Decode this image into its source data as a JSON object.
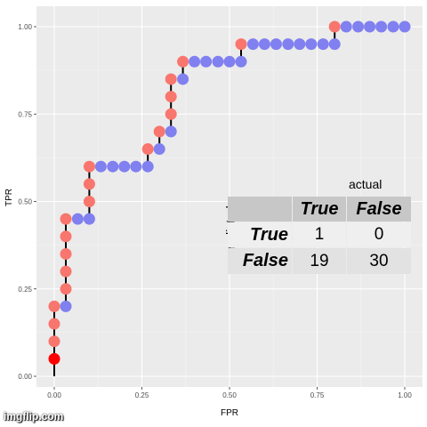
{
  "chart_data": {
    "type": "line",
    "xlabel": "FPR",
    "ylabel": "TPR",
    "xlim": [
      0,
      1
    ],
    "ylim": [
      0,
      1
    ],
    "xticks": [
      "0.00",
      "0.25",
      "0.50",
      "0.75",
      "1.00"
    ],
    "yticks": [
      "0.00",
      "0.25",
      "0.50",
      "0.75",
      "1.00"
    ],
    "grid": true,
    "background": "#ebebeb",
    "colors": {
      "true": "#f8766d",
      "false": "#8080f0",
      "current": "#ff0000",
      "line": "#000000"
    },
    "points": [
      {
        "x": 0.0,
        "y": 0.05,
        "actual": "current"
      },
      {
        "x": 0.0,
        "y": 0.1,
        "actual": "true"
      },
      {
        "x": 0.0,
        "y": 0.15,
        "actual": "true"
      },
      {
        "x": 0.0,
        "y": 0.2,
        "actual": "true"
      },
      {
        "x": 0.033,
        "y": 0.2,
        "actual": "false"
      },
      {
        "x": 0.033,
        "y": 0.25,
        "actual": "true"
      },
      {
        "x": 0.033,
        "y": 0.3,
        "actual": "true"
      },
      {
        "x": 0.033,
        "y": 0.35,
        "actual": "true"
      },
      {
        "x": 0.033,
        "y": 0.4,
        "actual": "true"
      },
      {
        "x": 0.033,
        "y": 0.45,
        "actual": "true"
      },
      {
        "x": 0.067,
        "y": 0.45,
        "actual": "false"
      },
      {
        "x": 0.1,
        "y": 0.45,
        "actual": "false"
      },
      {
        "x": 0.1,
        "y": 0.5,
        "actual": "true"
      },
      {
        "x": 0.1,
        "y": 0.55,
        "actual": "true"
      },
      {
        "x": 0.1,
        "y": 0.6,
        "actual": "true"
      },
      {
        "x": 0.133,
        "y": 0.6,
        "actual": "false"
      },
      {
        "x": 0.167,
        "y": 0.6,
        "actual": "false"
      },
      {
        "x": 0.2,
        "y": 0.6,
        "actual": "false"
      },
      {
        "x": 0.233,
        "y": 0.6,
        "actual": "false"
      },
      {
        "x": 0.267,
        "y": 0.6,
        "actual": "false"
      },
      {
        "x": 0.267,
        "y": 0.65,
        "actual": "true"
      },
      {
        "x": 0.3,
        "y": 0.65,
        "actual": "false"
      },
      {
        "x": 0.3,
        "y": 0.7,
        "actual": "true"
      },
      {
        "x": 0.333,
        "y": 0.7,
        "actual": "false"
      },
      {
        "x": 0.333,
        "y": 0.75,
        "actual": "true"
      },
      {
        "x": 0.333,
        "y": 0.8,
        "actual": "true"
      },
      {
        "x": 0.333,
        "y": 0.85,
        "actual": "true"
      },
      {
        "x": 0.367,
        "y": 0.85,
        "actual": "false"
      },
      {
        "x": 0.367,
        "y": 0.9,
        "actual": "true"
      },
      {
        "x": 0.4,
        "y": 0.9,
        "actual": "false"
      },
      {
        "x": 0.433,
        "y": 0.9,
        "actual": "false"
      },
      {
        "x": 0.467,
        "y": 0.9,
        "actual": "false"
      },
      {
        "x": 0.5,
        "y": 0.9,
        "actual": "false"
      },
      {
        "x": 0.533,
        "y": 0.9,
        "actual": "false"
      },
      {
        "x": 0.533,
        "y": 0.95,
        "actual": "true"
      },
      {
        "x": 0.567,
        "y": 0.95,
        "actual": "false"
      },
      {
        "x": 0.6,
        "y": 0.95,
        "actual": "false"
      },
      {
        "x": 0.633,
        "y": 0.95,
        "actual": "false"
      },
      {
        "x": 0.667,
        "y": 0.95,
        "actual": "false"
      },
      {
        "x": 0.7,
        "y": 0.95,
        "actual": "false"
      },
      {
        "x": 0.733,
        "y": 0.95,
        "actual": "false"
      },
      {
        "x": 0.767,
        "y": 0.95,
        "actual": "false"
      },
      {
        "x": 0.8,
        "y": 0.95,
        "actual": "false"
      },
      {
        "x": 0.8,
        "y": 1.0,
        "actual": "true"
      },
      {
        "x": 0.833,
        "y": 1.0,
        "actual": "false"
      },
      {
        "x": 0.867,
        "y": 1.0,
        "actual": "false"
      },
      {
        "x": 0.9,
        "y": 1.0,
        "actual": "false"
      },
      {
        "x": 0.933,
        "y": 1.0,
        "actual": "false"
      },
      {
        "x": 0.967,
        "y": 1.0,
        "actual": "false"
      },
      {
        "x": 1.0,
        "y": 1.0,
        "actual": "false"
      }
    ],
    "confusion_table": {
      "title": "actual",
      "row_title": "predicted",
      "col_headers": [
        "True",
        "False"
      ],
      "rows": [
        {
          "label": "True",
          "values": [
            "1",
            "0"
          ]
        },
        {
          "label": "False",
          "values": [
            "19",
            "30"
          ]
        }
      ]
    }
  },
  "watermark": "imgflip.com"
}
